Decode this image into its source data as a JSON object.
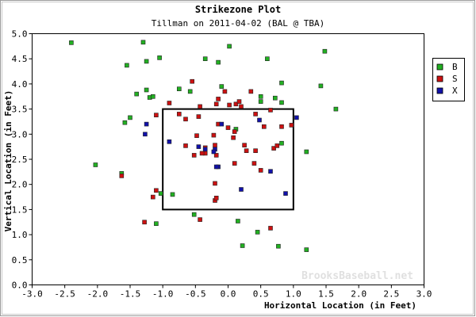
{
  "chart_data": {
    "type": "scatter",
    "title": "Strikezone Plot",
    "subtitle": "Tillman on 2011-04-02 (BAL @ TBA)",
    "xlabel": "Horizontal Location (in Feet)",
    "ylabel": "Vertical Location (in Feet)",
    "xlim": [
      -3.0,
      3.0
    ],
    "ylim": [
      0.0,
      5.0
    ],
    "x_ticks": [
      "-3.0",
      "-2.5",
      "-2.0",
      "-1.5",
      "-1.0",
      "-0.5",
      "0.0",
      "0.5",
      "1.0",
      "1.5",
      "2.0",
      "2.5",
      "3.0"
    ],
    "y_ticks": [
      "0.0",
      "0.5",
      "1.0",
      "1.5",
      "2.0",
      "2.5",
      "3.0",
      "3.5",
      "4.0",
      "4.5",
      "5.0"
    ],
    "grid": false,
    "legend_position": "right",
    "watermark": "BrooksBaseball.net",
    "strike_zone": {
      "x": [
        -1.0,
        1.0
      ],
      "y": [
        1.5,
        3.5
      ]
    },
    "series": [
      {
        "name": "B",
        "color": "#22b022",
        "points": [
          [
            -2.4,
            4.82
          ],
          [
            -1.3,
            4.83
          ],
          [
            -1.55,
            4.37
          ],
          [
            -1.25,
            4.45
          ],
          [
            -1.05,
            4.52
          ],
          [
            -0.35,
            4.5
          ],
          [
            -0.15,
            4.43
          ],
          [
            0.02,
            4.75
          ],
          [
            1.48,
            4.65
          ],
          [
            0.6,
            4.5
          ],
          [
            0.82,
            4.02
          ],
          [
            -0.1,
            3.95
          ],
          [
            -0.75,
            3.9
          ],
          [
            -0.58,
            3.85
          ],
          [
            -1.25,
            3.88
          ],
          [
            -1.2,
            3.73
          ],
          [
            -1.15,
            3.75
          ],
          [
            -1.4,
            3.8
          ],
          [
            0.5,
            3.75
          ],
          [
            0.5,
            3.65
          ],
          [
            0.72,
            3.72
          ],
          [
            0.82,
            3.63
          ],
          [
            1.42,
            3.96
          ],
          [
            1.65,
            3.5
          ],
          [
            -1.5,
            3.33
          ],
          [
            -1.58,
            3.23
          ],
          [
            0.12,
            3.1
          ],
          [
            0.82,
            2.82
          ],
          [
            1.2,
            2.65
          ],
          [
            -2.03,
            2.39
          ],
          [
            -1.63,
            2.22
          ],
          [
            -0.85,
            1.8
          ],
          [
            -1.03,
            1.82
          ],
          [
            -0.52,
            1.4
          ],
          [
            0.15,
            1.27
          ],
          [
            -1.1,
            1.22
          ],
          [
            0.45,
            1.05
          ],
          [
            0.22,
            0.78
          ],
          [
            0.77,
            0.77
          ],
          [
            1.2,
            0.7
          ]
        ]
      },
      {
        "name": "S",
        "color": "#cc1111",
        "points": [
          [
            -0.55,
            4.05
          ],
          [
            -0.15,
            3.7
          ],
          [
            -0.18,
            3.6
          ],
          [
            0.02,
            3.58
          ],
          [
            0.12,
            3.6
          ],
          [
            0.17,
            3.65
          ],
          [
            -0.05,
            3.85
          ],
          [
            0.35,
            3.85
          ],
          [
            0.2,
            3.55
          ],
          [
            -0.9,
            3.62
          ],
          [
            -0.75,
            3.4
          ],
          [
            -1.1,
            3.38
          ],
          [
            -0.65,
            3.3
          ],
          [
            -0.45,
            3.35
          ],
          [
            -0.43,
            3.55
          ],
          [
            -0.15,
            3.2
          ],
          [
            0.0,
            3.13
          ],
          [
            0.1,
            3.05
          ],
          [
            0.55,
            3.15
          ],
          [
            0.42,
            3.4
          ],
          [
            0.65,
            3.48
          ],
          [
            0.82,
            3.15
          ],
          [
            0.97,
            3.18
          ],
          [
            -0.48,
            2.97
          ],
          [
            -0.22,
            2.98
          ],
          [
            -0.65,
            2.77
          ],
          [
            -0.35,
            2.73
          ],
          [
            0.08,
            2.93
          ],
          [
            0.25,
            2.78
          ],
          [
            0.28,
            2.67
          ],
          [
            0.42,
            2.67
          ],
          [
            0.7,
            2.72
          ],
          [
            0.75,
            2.77
          ],
          [
            -0.35,
            2.62
          ],
          [
            -0.4,
            2.62
          ],
          [
            -0.2,
            2.78
          ],
          [
            -0.52,
            2.58
          ],
          [
            -0.18,
            2.58
          ],
          [
            0.1,
            2.42
          ],
          [
            0.4,
            2.42
          ],
          [
            0.5,
            2.28
          ],
          [
            -0.2,
            2.02
          ],
          [
            -1.1,
            1.88
          ],
          [
            -1.15,
            1.75
          ],
          [
            -0.2,
            1.68
          ],
          [
            -0.18,
            1.73
          ],
          [
            -0.43,
            1.3
          ],
          [
            -1.28,
            1.25
          ],
          [
            0.65,
            1.13
          ],
          [
            -1.63,
            2.17
          ]
        ]
      },
      {
        "name": "X",
        "color": "#1111aa",
        "points": [
          [
            -1.25,
            3.2
          ],
          [
            -1.27,
            3.0
          ],
          [
            -0.1,
            3.2
          ],
          [
            0.48,
            3.28
          ],
          [
            1.05,
            3.33
          ],
          [
            -0.9,
            2.85
          ],
          [
            -0.45,
            2.75
          ],
          [
            -0.35,
            2.7
          ],
          [
            -0.2,
            2.7
          ],
          [
            -0.22,
            2.65
          ],
          [
            -0.15,
            2.35
          ],
          [
            -0.18,
            2.35
          ],
          [
            0.65,
            2.26
          ],
          [
            0.2,
            1.9
          ],
          [
            0.88,
            1.82
          ]
        ]
      }
    ]
  }
}
